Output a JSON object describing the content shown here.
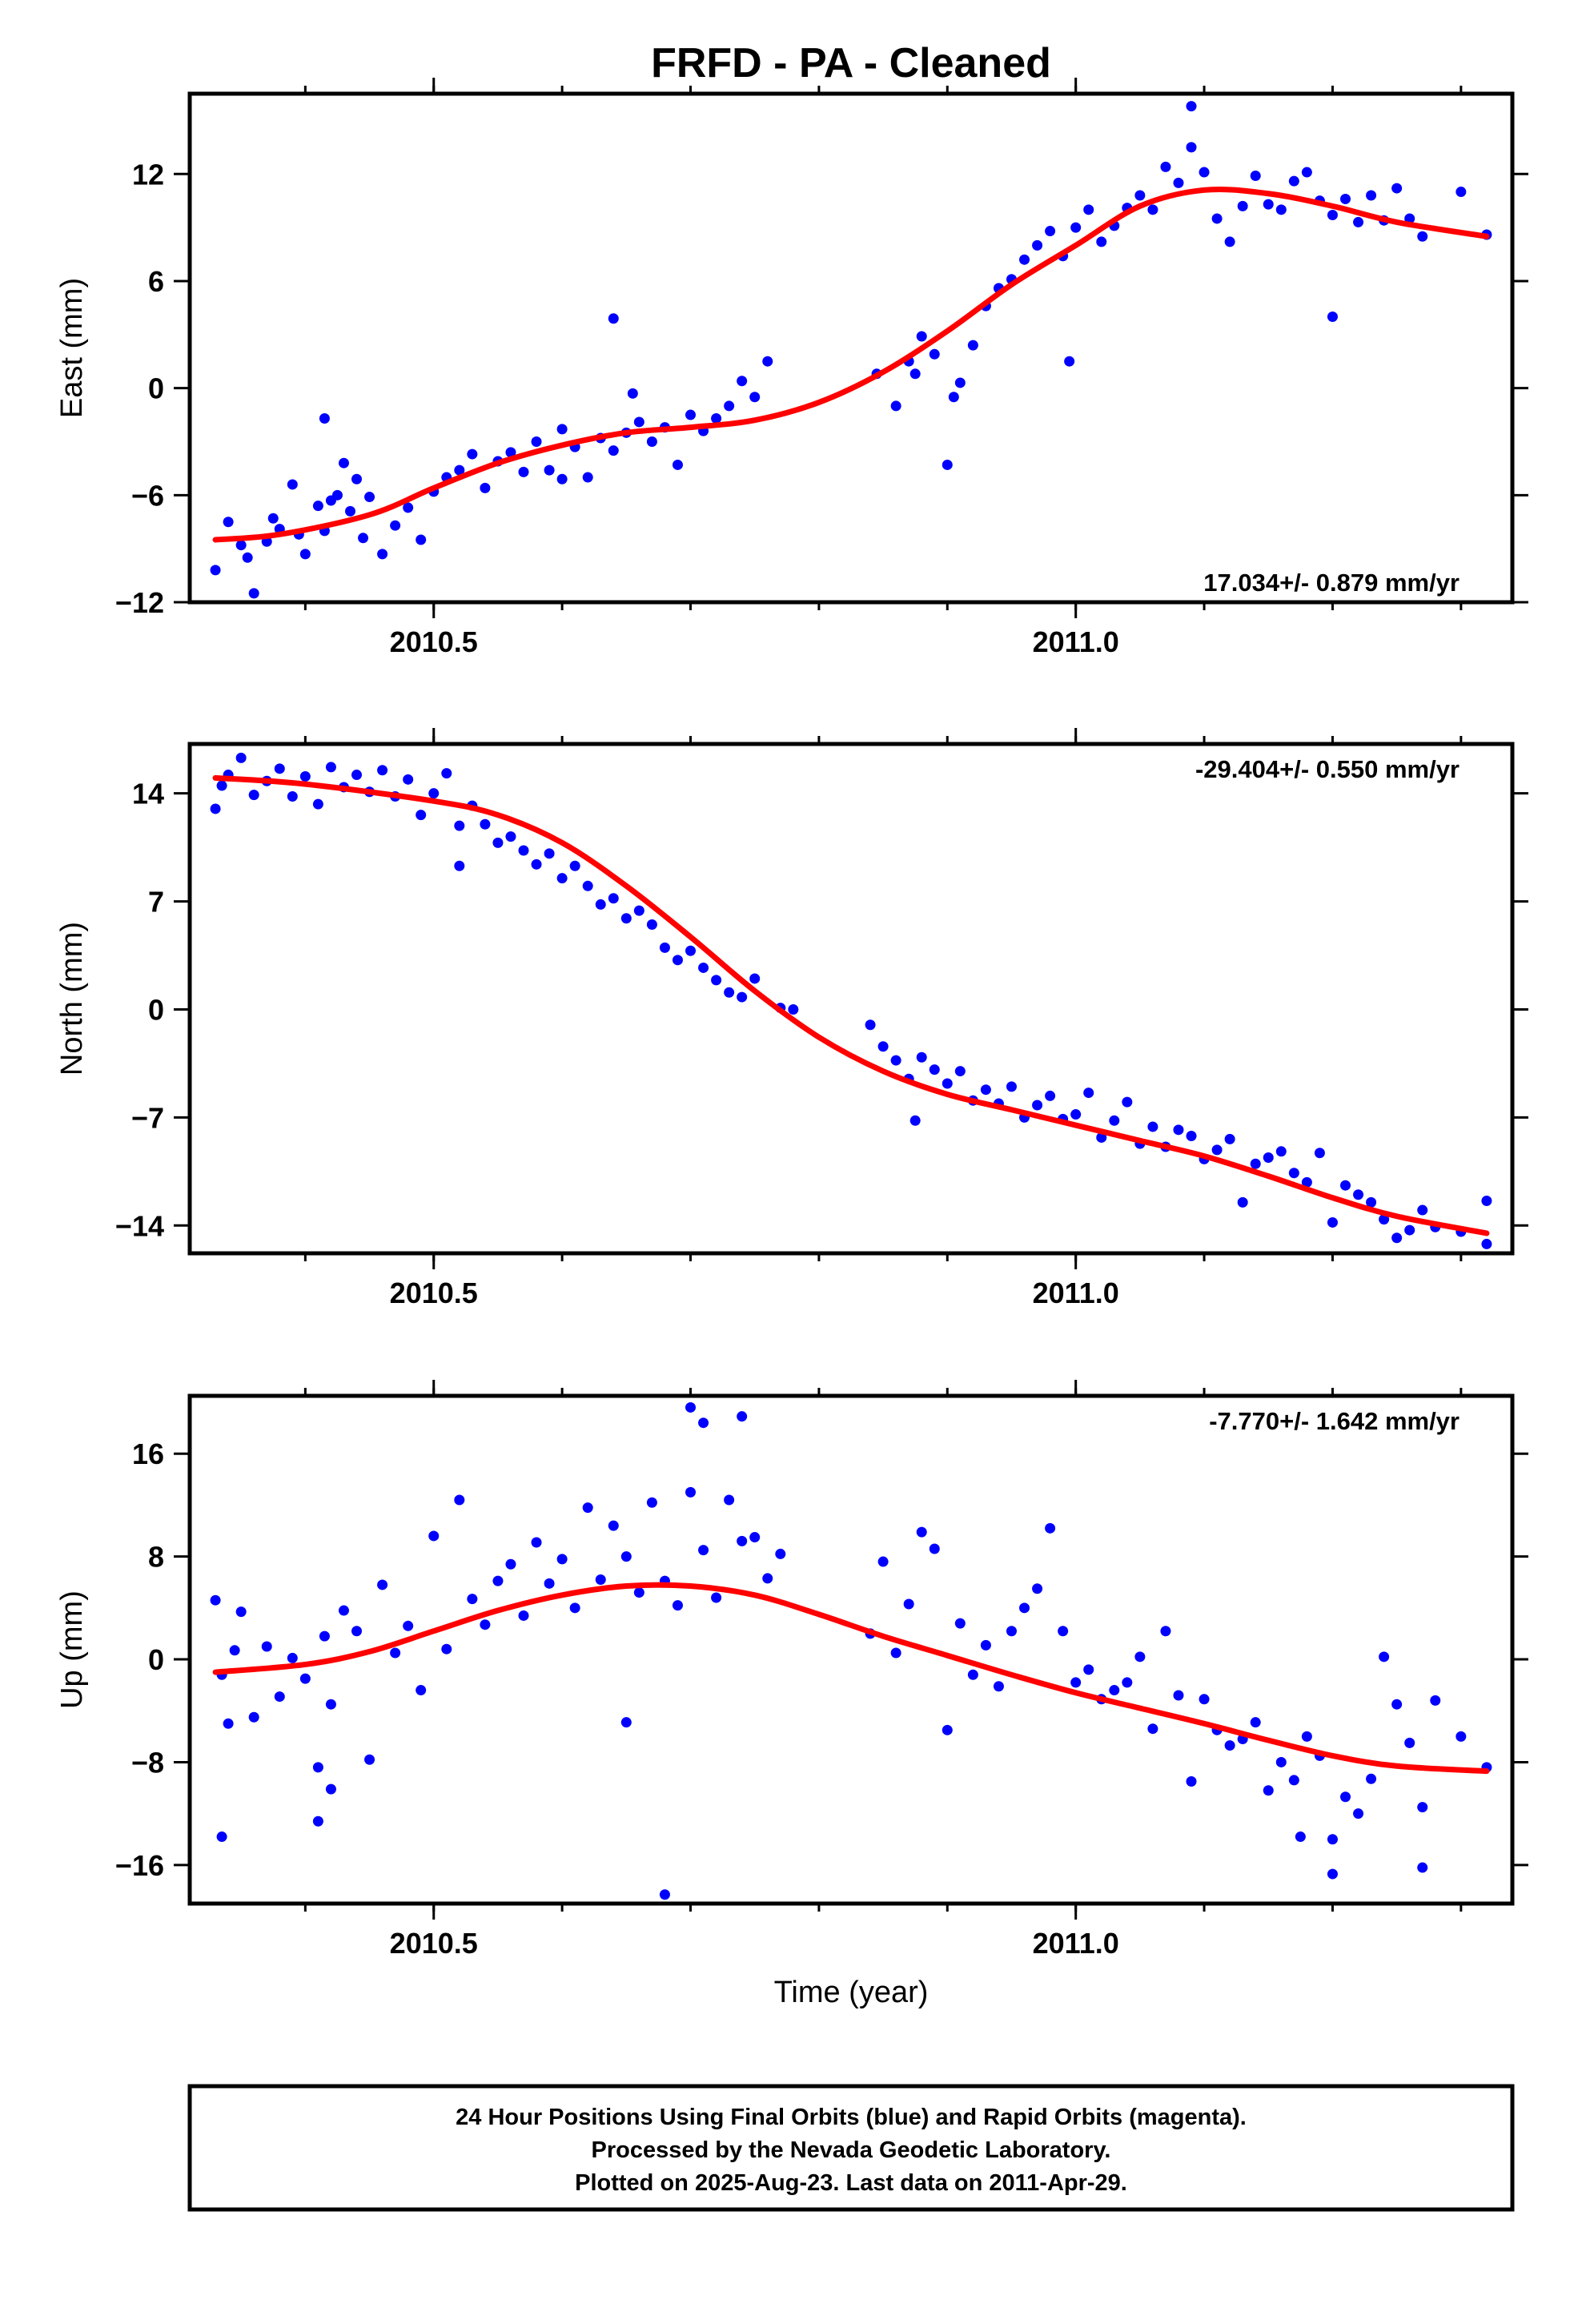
{
  "title": "FRFD  - PA - Cleaned",
  "xlabel": "Time (year)",
  "footer": {
    "line1": "24 Hour Positions Using Final Orbits (blue) and Rapid Orbits (magenta).",
    "line2": "Processed by the Nevada Geodetic Laboratory.",
    "line3": "Plotted on 2025-Aug-23. Last data on 2011-Apr-29."
  },
  "colors": {
    "points": "#0000ff",
    "fit": "#ff0000",
    "frame": "#000000"
  },
  "chart_data": [
    {
      "type": "scatter",
      "name": "east",
      "ylabel": "East (mm)",
      "rate_label": "17.034+/- 0.879 mm/yr",
      "xlim": [
        2010.31,
        2011.34
      ],
      "ylim": [
        -12,
        16.5
      ],
      "xticks": [
        2010.5,
        2011.0
      ],
      "yticks": [
        -12,
        -6,
        0,
        6,
        12
      ],
      "fit": {
        "x": [
          2010.33,
          2010.38,
          2010.45,
          2010.5,
          2010.55,
          2010.6,
          2010.65,
          2010.7,
          2010.75,
          2010.8,
          2010.85,
          2010.9,
          2010.95,
          2011.0,
          2011.05,
          2011.1,
          2011.15,
          2011.2,
          2011.25,
          2011.32
        ],
        "y": [
          -8.5,
          -8.2,
          -7.1,
          -5.6,
          -4.2,
          -3.2,
          -2.5,
          -2.2,
          -1.8,
          -0.8,
          0.9,
          3.2,
          5.8,
          8.0,
          10.2,
          11.1,
          10.9,
          10.2,
          9.3,
          8.5
        ]
      },
      "points": {
        "x": [
          2010.33,
          2010.34,
          2010.35,
          2010.355,
          2010.36,
          2010.37,
          2010.375,
          2010.38,
          2010.39,
          2010.395,
          2010.4,
          2010.41,
          2010.415,
          2010.42,
          2010.43,
          2010.435,
          2010.44,
          2010.445,
          2010.45,
          2010.46,
          2010.47,
          2010.48,
          2010.49,
          2010.5,
          2010.51,
          2010.52,
          2010.53,
          2010.54,
          2010.55,
          2010.56,
          2010.57,
          2010.58,
          2010.59,
          2010.6,
          2010.61,
          2010.62,
          2010.63,
          2010.64,
          2010.65,
          2010.66,
          2010.67,
          2010.68,
          2010.69,
          2010.7,
          2010.71,
          2010.72,
          2010.73,
          2010.74,
          2010.75,
          2010.76,
          2010.845,
          2010.86,
          2010.87,
          2010.875,
          2010.88,
          2010.89,
          2010.9,
          2010.905,
          2010.91,
          2010.92,
          2010.93,
          2010.94,
          2010.95,
          2010.96,
          2010.97,
          2010.98,
          2010.99,
          2011.0,
          2011.01,
          2011.02,
          2011.03,
          2011.04,
          2011.05,
          2011.06,
          2011.07,
          2011.08,
          2011.09,
          2011.1,
          2011.11,
          2011.12,
          2011.13,
          2011.14,
          2011.15,
          2011.16,
          2011.17,
          2011.18,
          2011.19,
          2011.2,
          2011.21,
          2011.22,
          2011.23,
          2011.24,
          2011.25,
          2011.26,
          2011.27,
          2011.3,
          2011.32,
          2011.09,
          2011.2,
          2010.995,
          2010.64,
          2010.415,
          2010.425,
          2010.6,
          2010.655
        ],
        "y": [
          -10.2,
          -7.5,
          -8.8,
          -9.5,
          -11.5,
          -8.6,
          -7.3,
          -7.9,
          -5.4,
          -8.2,
          -9.3,
          -6.6,
          -8.0,
          -6.3,
          -4.2,
          -6.9,
          -5.1,
          -8.4,
          -6.1,
          -9.3,
          -7.7,
          -6.7,
          -8.5,
          -5.8,
          -5.0,
          -4.6,
          -3.7,
          -5.6,
          -4.1,
          -3.6,
          -4.7,
          -3.0,
          -4.6,
          -2.3,
          -3.3,
          -5.0,
          -2.8,
          -3.5,
          -2.5,
          -1.9,
          -3.0,
          -2.2,
          -4.3,
          -1.5,
          -2.4,
          -1.7,
          -1.0,
          0.4,
          -0.5,
          1.5,
          0.8,
          -1.0,
          1.5,
          0.8,
          2.9,
          1.9,
          -4.3,
          -0.5,
          0.3,
          2.4,
          4.6,
          5.6,
          6.1,
          7.2,
          8.0,
          8.8,
          7.4,
          9.0,
          10.0,
          8.2,
          9.1,
          10.1,
          10.8,
          10.0,
          12.4,
          11.5,
          13.5,
          12.1,
          9.5,
          8.2,
          10.2,
          11.9,
          10.3,
          10.0,
          11.6,
          12.1,
          10.5,
          9.7,
          10.6,
          9.3,
          10.8,
          9.4,
          11.2,
          9.5,
          8.5,
          11.0,
          8.6,
          15.8,
          4.0,
          1.5,
          3.9,
          -1.7,
          -6.0,
          -5.1,
          -0.3
        ]
      }
    },
    {
      "type": "scatter",
      "name": "north",
      "ylabel": "North (mm)",
      "rate_label": "-29.404+/- 0.550 mm/yr",
      "xlim": [
        2010.31,
        2011.34
      ],
      "ylim": [
        -15.8,
        17.2
      ],
      "xticks": [
        2010.5,
        2011.0
      ],
      "yticks": [
        -14,
        -7,
        0,
        7,
        14
      ],
      "fit": {
        "x": [
          2010.33,
          2010.4,
          2010.5,
          2010.55,
          2010.6,
          2010.65,
          2010.7,
          2010.75,
          2010.8,
          2010.85,
          2010.9,
          2010.95,
          2011.0,
          2011.05,
          2011.1,
          2011.15,
          2011.2,
          2011.25,
          2011.32
        ],
        "y": [
          15.0,
          14.6,
          13.5,
          12.6,
          10.8,
          8.0,
          4.7,
          1.2,
          -1.8,
          -4.0,
          -5.5,
          -6.5,
          -7.5,
          -8.5,
          -9.5,
          -10.8,
          -12.2,
          -13.4,
          -14.5
        ]
      },
      "points": {
        "x": [
          2010.33,
          2010.335,
          2010.34,
          2010.35,
          2010.36,
          2010.37,
          2010.38,
          2010.39,
          2010.4,
          2010.41,
          2010.42,
          2010.43,
          2010.44,
          2010.45,
          2010.46,
          2010.47,
          2010.48,
          2010.49,
          2010.5,
          2010.51,
          2010.52,
          2010.53,
          2010.54,
          2010.55,
          2010.56,
          2010.57,
          2010.58,
          2010.59,
          2010.6,
          2010.61,
          2010.62,
          2010.63,
          2010.64,
          2010.65,
          2010.66,
          2010.67,
          2010.68,
          2010.69,
          2010.7,
          2010.71,
          2010.72,
          2010.73,
          2010.74,
          2010.75,
          2010.77,
          2010.78,
          2010.84,
          2010.85,
          2010.86,
          2010.87,
          2010.88,
          2010.89,
          2010.9,
          2010.91,
          2010.92,
          2010.93,
          2010.94,
          2010.95,
          2010.96,
          2010.97,
          2010.98,
          2010.99,
          2011.0,
          2011.01,
          2011.02,
          2011.03,
          2011.04,
          2011.05,
          2011.06,
          2011.07,
          2011.08,
          2011.09,
          2011.1,
          2011.11,
          2011.12,
          2011.13,
          2011.14,
          2011.15,
          2011.16,
          2011.17,
          2011.18,
          2011.19,
          2011.2,
          2011.21,
          2011.22,
          2011.23,
          2011.24,
          2011.25,
          2011.26,
          2011.27,
          2011.28,
          2011.3,
          2011.32,
          2011.32,
          2010.52,
          2010.875
        ],
        "y": [
          13.0,
          14.5,
          15.2,
          16.3,
          13.9,
          14.8,
          15.6,
          13.8,
          15.1,
          13.3,
          15.7,
          14.4,
          15.2,
          14.1,
          15.5,
          13.8,
          14.9,
          12.6,
          14.0,
          15.3,
          11.9,
          13.2,
          12.0,
          10.8,
          11.2,
          10.3,
          9.4,
          10.1,
          8.5,
          9.3,
          8.0,
          6.8,
          7.2,
          5.9,
          6.4,
          5.5,
          4.0,
          3.2,
          3.8,
          2.7,
          1.9,
          1.1,
          0.8,
          2.0,
          0.1,
          0.0,
          -1.0,
          -2.4,
          -3.3,
          -4.5,
          -3.1,
          -3.9,
          -4.8,
          -4.0,
          -5.9,
          -5.2,
          -6.1,
          -5.0,
          -7.0,
          -6.2,
          -5.6,
          -7.1,
          -6.8,
          -5.4,
          -8.3,
          -7.2,
          -6.0,
          -8.7,
          -7.6,
          -8.9,
          -7.8,
          -8.2,
          -9.7,
          -9.1,
          -8.4,
          -12.5,
          -10.0,
          -9.6,
          -9.2,
          -10.6,
          -11.2,
          -9.3,
          -13.8,
          -11.4,
          -12.0,
          -12.5,
          -13.6,
          -14.8,
          -14.3,
          -13.0,
          -14.1,
          -14.4,
          -15.2,
          -12.4,
          9.3,
          -7.2
        ]
      }
    },
    {
      "type": "scatter",
      "name": "up",
      "ylabel": "Up (mm)",
      "rate_label": "-7.770+/- 1.642 mm/yr",
      "xlim": [
        2010.31,
        2011.34
      ],
      "ylim": [
        -19,
        20.5
      ],
      "xticks": [
        2010.5,
        2011.0
      ],
      "yticks": [
        -16,
        -8,
        0,
        8,
        16
      ],
      "fit": {
        "x": [
          2010.33,
          2010.4,
          2010.45,
          2010.5,
          2010.55,
          2010.6,
          2010.65,
          2010.7,
          2010.75,
          2010.8,
          2010.85,
          2010.9,
          2010.95,
          2011.0,
          2011.05,
          2011.1,
          2011.15,
          2011.2,
          2011.25,
          2011.32
        ],
        "y": [
          -1.0,
          -0.4,
          0.6,
          2.2,
          3.8,
          5.0,
          5.7,
          5.7,
          5.0,
          3.5,
          1.8,
          0.3,
          -1.2,
          -2.6,
          -3.8,
          -5.0,
          -6.3,
          -7.5,
          -8.3,
          -8.7
        ]
      },
      "points": {
        "x": [
          2010.33,
          2010.335,
          2010.34,
          2010.345,
          2010.35,
          2010.36,
          2010.37,
          2010.38,
          2010.39,
          2010.4,
          2010.41,
          2010.415,
          2010.42,
          2010.43,
          2010.44,
          2010.45,
          2010.46,
          2010.47,
          2010.48,
          2010.49,
          2010.5,
          2010.51,
          2010.52,
          2010.53,
          2010.54,
          2010.55,
          2010.56,
          2010.57,
          2010.58,
          2010.59,
          2010.6,
          2010.61,
          2010.62,
          2010.63,
          2010.64,
          2010.65,
          2010.66,
          2010.67,
          2010.68,
          2010.69,
          2010.7,
          2010.71,
          2010.72,
          2010.73,
          2010.74,
          2010.75,
          2010.76,
          2010.77,
          2010.84,
          2010.85,
          2010.86,
          2010.87,
          2010.88,
          2010.89,
          2010.9,
          2010.91,
          2010.92,
          2010.93,
          2010.94,
          2010.95,
          2010.96,
          2010.97,
          2010.98,
          2010.99,
          2011.0,
          2011.01,
          2011.02,
          2011.03,
          2011.04,
          2011.05,
          2011.06,
          2011.07,
          2011.08,
          2011.09,
          2011.1,
          2011.11,
          2011.12,
          2011.13,
          2011.14,
          2011.15,
          2011.16,
          2011.17,
          2011.18,
          2011.19,
          2011.2,
          2011.21,
          2011.22,
          2011.23,
          2011.24,
          2011.25,
          2011.26,
          2011.27,
          2011.28,
          2011.3,
          2011.32,
          2010.335,
          2010.41,
          2010.42,
          2010.68,
          2010.7,
          2010.71,
          2010.74,
          2010.65,
          2011.2,
          2011.27,
          2011.175
        ],
        "y": [
          4.6,
          -1.2,
          -5.0,
          0.7,
          3.7,
          -4.5,
          1.0,
          -2.9,
          0.1,
          -1.5,
          -8.4,
          1.8,
          -3.5,
          3.8,
          2.2,
          -7.8,
          5.8,
          0.5,
          2.6,
          -2.4,
          9.6,
          0.8,
          12.4,
          4.7,
          2.7,
          6.1,
          7.4,
          3.4,
          9.1,
          5.9,
          7.8,
          4.0,
          11.8,
          6.2,
          10.4,
          8.0,
          5.2,
          12.2,
          6.1,
          4.2,
          13.0,
          8.5,
          4.8,
          12.4,
          9.2,
          9.5,
          6.3,
          8.2,
          2.0,
          7.6,
          0.5,
          4.3,
          9.9,
          8.6,
          -5.5,
          2.8,
          -1.2,
          1.1,
          -2.1,
          2.2,
          4.0,
          5.5,
          10.2,
          2.2,
          -1.8,
          -0.8,
          -3.1,
          -2.4,
          -1.8,
          0.2,
          -5.4,
          2.2,
          -2.8,
          -9.5,
          -3.1,
          -5.5,
          -6.7,
          -6.2,
          -4.9,
          -10.2,
          -8.0,
          -9.4,
          -6.0,
          -7.5,
          -16.7,
          -10.7,
          -12.0,
          -9.3,
          0.2,
          -3.5,
          -6.5,
          -11.5,
          -3.2,
          -6.0,
          -8.4,
          -13.8,
          -12.6,
          -10.1,
          -18.3,
          19.6,
          18.4,
          18.9,
          -4.9,
          -14.0,
          -16.2,
          -13.8
        ]
      }
    }
  ]
}
